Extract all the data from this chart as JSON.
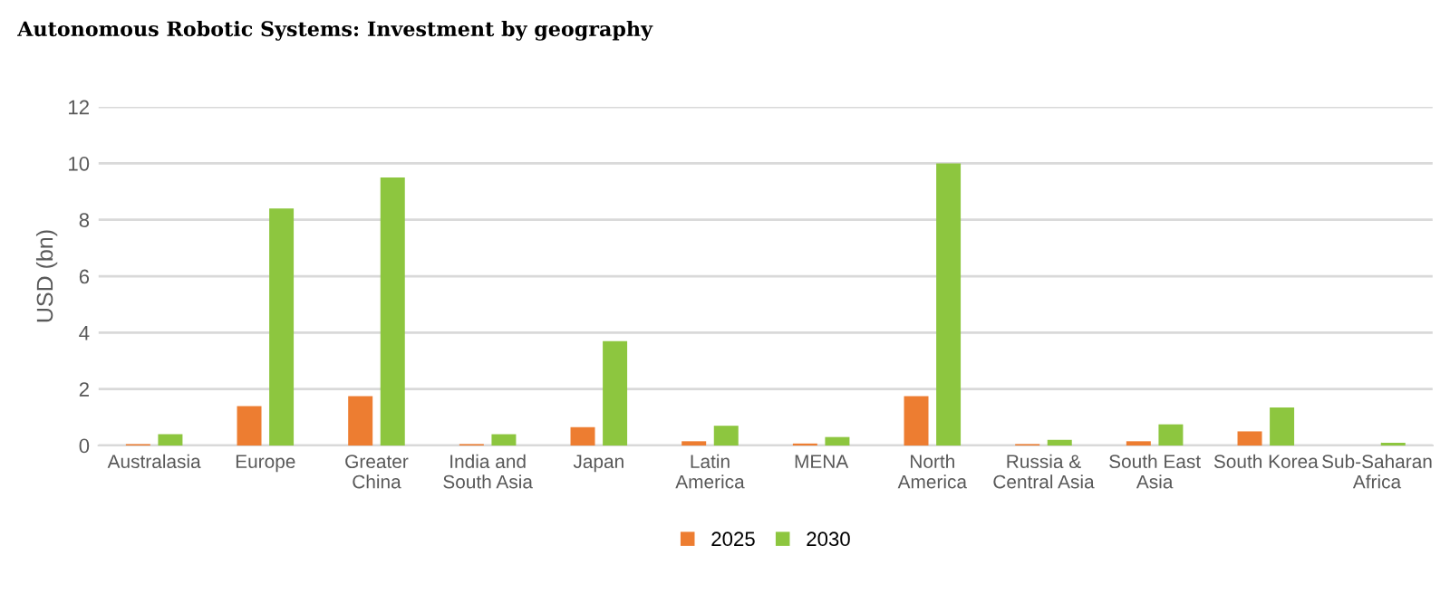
{
  "chart_data": {
    "type": "bar",
    "title": "Autonomous Robotic Systems: Investment by geography",
    "ylabel": "USD (bn)",
    "categories": [
      "Australasia",
      "Europe",
      "Greater\nChina",
      "India and\nSouth Asia",
      "Japan",
      "Latin\nAmerica",
      "MENA",
      "North\nAmerica",
      "Russia &\nCentral Asia",
      "South East\nAsia",
      "South Korea",
      "Sub-Saharan\nAfrica"
    ],
    "series": [
      {
        "name": "2025",
        "color": "#ed7d31",
        "values": [
          0.05,
          1.4,
          1.75,
          0.05,
          0.65,
          0.15,
          0.07,
          1.75,
          0.05,
          0.15,
          0.5,
          0.0
        ]
      },
      {
        "name": "2030",
        "color": "#8dc63f",
        "values": [
          0.4,
          8.4,
          9.5,
          0.4,
          3.7,
          0.7,
          0.3,
          10.0,
          0.2,
          0.75,
          1.35,
          0.1
        ]
      }
    ],
    "ylim": [
      0,
      12
    ],
    "yticks": [
      0,
      2,
      4,
      6,
      8,
      10,
      12
    ],
    "grid": "y",
    "legend": "bottom"
  }
}
